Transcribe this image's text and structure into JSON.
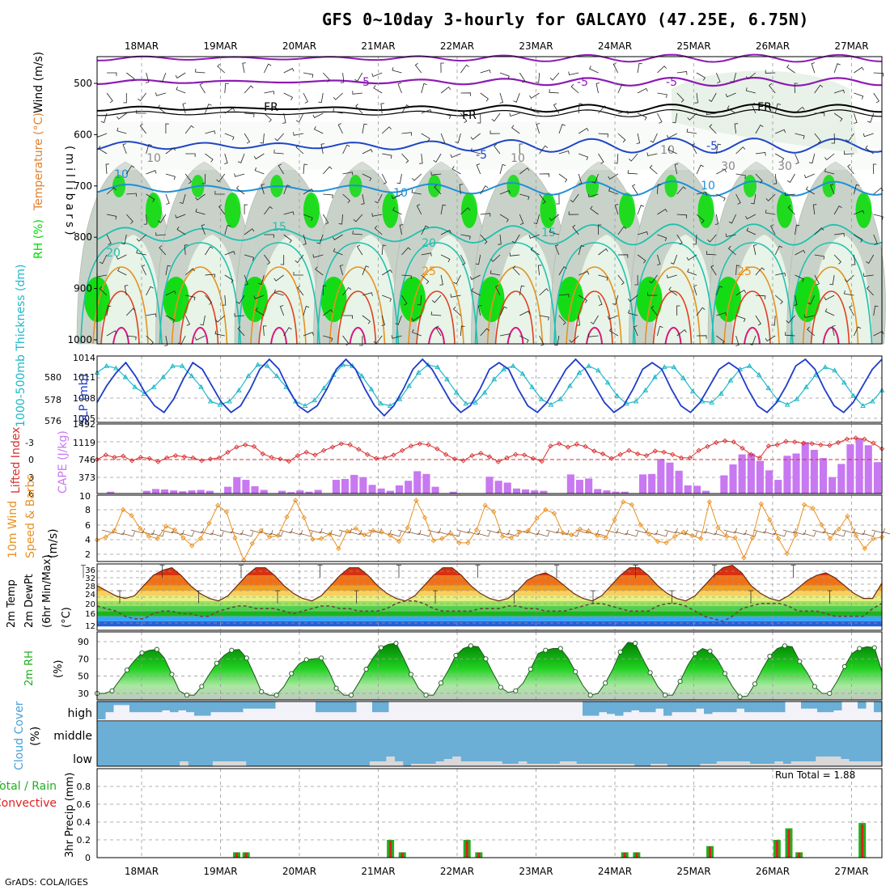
{
  "header": {
    "title": "GFS 0~10day 3-hourly for GALCAYO (47.25E, 6.75N)",
    "footer": "GrADS: COLA/IGES"
  },
  "chart_data": {
    "type": "meteogram",
    "dates": [
      "18MAR",
      "19MAR",
      "20MAR",
      "21MAR",
      "22MAR",
      "23MAR",
      "24MAR",
      "25MAR",
      "26MAR",
      "27MAR"
    ],
    "colors": {
      "rh_green": "#00dd00",
      "rh_light": "#e8f3e8",
      "rh_mid": "#c8d0c8",
      "temp_blue": "#1e46c8",
      "temp_cyan": "#1e90d8",
      "temp_teal": "#20c0b0",
      "temp_orange": "#e89020",
      "temp_red": "#e04020",
      "temp_magenta": "#d81880",
      "fr_line": "#000000",
      "neg5_line": "#8c1ab4",
      "slp": "#1e3cc8",
      "thickness": "#20b8c8",
      "lifted": "#d83030",
      "cape": "#c878f0",
      "wind": "#e89020",
      "cloud": "#6baed6",
      "precip_total": "#20b020",
      "precip_conv": "#e02020"
    },
    "panels": [
      {
        "id": "upper-air",
        "label_parts": [
          "RH (%)",
          "Temperature (°C)",
          "Wind (m/s)"
        ],
        "ylabel": "(millibars)",
        "yticks": [
          "500",
          "600",
          "700",
          "800",
          "900",
          "1000"
        ],
        "contour_labels": [
          "-5",
          "-5",
          "-5",
          "FR",
          "FR",
          "FR",
          "-5",
          "-5",
          "10",
          "10",
          "10",
          "15",
          "15",
          "20",
          "20",
          "25",
          "25",
          "10",
          "10",
          "10",
          "30",
          "30"
        ]
      },
      {
        "id": "slp-thickness",
        "label_left": "1000-500mb Thickness (dm)",
        "label_right": "SLP (mb)",
        "yticks_left": [
          "580",
          "578",
          "576"
        ],
        "yticks_right": [
          "1014",
          "1011",
          "1008",
          "1005"
        ],
        "ylim_right": [
          1004,
          1014
        ],
        "ylim_left": [
          575.7,
          581.7
        ],
        "slp": [
          1007,
          1009.5,
          1011.5,
          1013,
          1011,
          1008.5,
          1006.5,
          1005.5,
          1007.5,
          1010.5,
          1013,
          1012,
          1009.5,
          1007,
          1005.5,
          1006.5,
          1009,
          1012,
          1013.5,
          1012,
          1009,
          1006.5,
          1005.5,
          1006.5,
          1009,
          1012,
          1013.5,
          1012,
          1009,
          1006.5,
          1005,
          1006.5,
          1009,
          1012,
          1013.5,
          1012,
          1009.5,
          1007,
          1005.5,
          1006.5,
          1009,
          1012,
          1013,
          1012,
          1009,
          1006.5,
          1005.5,
          1007,
          1009.5,
          1012,
          1013.5,
          1012,
          1009.5,
          1007,
          1005.5,
          1006.5,
          1009,
          1012,
          1013,
          1012,
          1009,
          1006.5,
          1005.5,
          1007,
          1009.5,
          1012,
          1013,
          1012,
          1009,
          1006.5,
          1005.5,
          1007,
          1009.5,
          1012.5,
          1013.5,
          1012,
          1009,
          1006.5,
          1005.5,
          1007,
          1009.5,
          1012,
          1013.5
        ],
        "thickness": [
          580.2,
          580.8,
          580.6,
          579.8,
          578.9,
          578.3,
          578.9,
          579.8,
          580.8,
          580.8,
          579.9,
          578.9,
          577.6,
          577.3,
          577.6,
          578.6,
          579.9,
          580.9,
          580.8,
          579.9,
          578.9,
          577.6,
          577.2,
          577.7,
          578.8,
          580.0,
          580.9,
          580.8,
          579.9,
          578.7,
          577.4,
          577.2,
          577.8,
          579.0,
          580.2,
          580.9,
          580.7,
          579.6,
          578.4,
          577.4,
          577.5,
          578.4,
          579.6,
          580.5,
          580.8,
          580.1,
          578.9,
          577.8,
          577.3,
          577.8,
          579.0,
          580.2,
          580.8,
          580.4,
          579.3,
          578.1,
          577.4,
          577.6,
          578.6,
          579.8,
          580.7,
          580.7,
          579.7,
          578.5,
          577.6,
          577.5,
          578.3,
          579.5,
          580.5,
          580.8,
          580.0,
          578.8,
          577.7,
          577.3,
          577.8,
          578.9,
          580.0,
          580.7,
          580.4,
          579.3,
          578.1,
          577.2,
          577.6,
          578.6
        ]
      },
      {
        "id": "li-cape",
        "label_left": "Lifted Index",
        "label_right": "CAPE (J/kg)",
        "yticks_left": [
          "-3",
          "0",
          "3",
          "6"
        ],
        "yticks_right": [
          "1492",
          "1119",
          "746",
          "373"
        ],
        "ylim_right": [
          0,
          1492
        ],
        "ylim_left_inverted": [
          -6,
          6
        ],
        "cape": [
          0,
          40,
          0,
          0,
          0,
          60,
          100,
          90,
          70,
          50,
          70,
          80,
          60,
          0,
          150,
          360,
          300,
          160,
          80,
          0,
          60,
          30,
          70,
          40,
          80,
          0,
          300,
          320,
          410,
          360,
          190,
          110,
          60,
          180,
          280,
          490,
          430,
          150,
          0,
          40,
          0,
          0,
          0,
          370,
          280,
          240,
          110,
          90,
          70,
          60,
          0,
          0,
          420,
          300,
          330,
          100,
          70,
          40,
          40,
          0,
          420,
          430,
          760,
          680,
          500,
          180,
          170,
          60,
          0,
          400,
          640,
          860,
          880,
          720,
          510,
          300,
          830,
          880,
          1130,
          960,
          780,
          360,
          650,
          1080,
          1210,
          1060,
          690
        ],
        "lifted": [
          0,
          -0.8,
          -0.4,
          -0.6,
          0.2,
          -0.4,
          -0.2,
          0.4,
          -0.3,
          -0.7,
          -0.5,
          -0.3,
          0.2,
          -0.1,
          -0.3,
          -1.3,
          -2.2,
          -2.6,
          -2.3,
          -1.0,
          -0.4,
          -0.1,
          0.3,
          -0.7,
          -1.3,
          -0.8,
          -1.6,
          -2.2,
          -2.8,
          -2.6,
          -1.8,
          -0.9,
          -0.2,
          -0.3,
          -0.8,
          -1.6,
          -2.4,
          -2.8,
          -2.6,
          -1.9,
          -0.9,
          -0.1,
          0.2,
          -0.7,
          -1.1,
          -0.5,
          0.4,
          -0.3,
          -0.9,
          -0.8,
          -0.2,
          0.3,
          -2.4,
          -2.8,
          -2.2,
          -2.7,
          -2.3,
          -1.5,
          -1.0,
          -0.2,
          -0.9,
          -1.6,
          -1.0,
          -0.7,
          -1.5,
          -1.3,
          -0.9,
          -0.3,
          -0.3,
          -1.6,
          -2.3,
          -3.0,
          -3.3,
          -3.1,
          -2.0,
          -0.9,
          -0.3,
          -2.4,
          -2.6,
          -3.2,
          -3.1,
          -2.9,
          -2.8,
          -2.6,
          -2.5,
          -3.0,
          -3.6,
          -3.8,
          -3.6,
          -2.9,
          -1.9
        ]
      },
      {
        "id": "wind10m",
        "label_left": "10m Wind",
        "label_right": "Speed & Barbs",
        "ylabel": "(m/s)",
        "yticks": [
          "10",
          "8",
          "6",
          "4",
          "2"
        ],
        "ylim": [
          1,
          10
        ],
        "speed": [
          4,
          4.4,
          5.3,
          8.2,
          7.4,
          5.6,
          4.5,
          4.2,
          5.9,
          5.4,
          4.3,
          3.2,
          4.2,
          6.3,
          8.8,
          7.9,
          4.3,
          1.2,
          3.5,
          5.3,
          4.4,
          4.6,
          7.2,
          9.5,
          7.1,
          4.1,
          4.2,
          4.8,
          2.8,
          5.2,
          5.6,
          4.7,
          5.3,
          5.1,
          4.6,
          3.8,
          5.7,
          9.5,
          7.1,
          3.9,
          4.2,
          4.9,
          3.6,
          3.6,
          5.4,
          8.8,
          7.9,
          4.5,
          4.3,
          5.1,
          5.3,
          7.0,
          8.2,
          7.7,
          5.0,
          4.7,
          5.5,
          5.2,
          4.6,
          4.3,
          6.8,
          9.3,
          8.9,
          6.1,
          4.8,
          3.8,
          3.6,
          4.5,
          5.1,
          4.6,
          4.2,
          9.3,
          5.7,
          4.5,
          4.3,
          1.5,
          4.3,
          9.0,
          6.8,
          4.2,
          2.1,
          4.7,
          8.9,
          8.4,
          6.1,
          4.2,
          5.5,
          7.3,
          4.6,
          2.8,
          4.2,
          4.4
        ]
      },
      {
        "id": "temp2m",
        "label_left": "2m Temp",
        "label_mid": "2m DewPt",
        "label_right": "(6hr Min/Max)",
        "ylabel": "(°C)",
        "yticks": [
          "36",
          "32",
          "28",
          "24",
          "20",
          "16",
          "12"
        ],
        "ylim": [
          10.5,
          36.5
        ],
        "temp": [
          28,
          26,
          24,
          23,
          24,
          28,
          32,
          34,
          35,
          32,
          28,
          25,
          23,
          22,
          24,
          28,
          32,
          35,
          35,
          32,
          28,
          25,
          23,
          22,
          24,
          28,
          32,
          35,
          35,
          32,
          28,
          25,
          23,
          22,
          24,
          28,
          32,
          35,
          35,
          32,
          28,
          25,
          23,
          22,
          23,
          26,
          30,
          32,
          33,
          31,
          28,
          25,
          23,
          22,
          24,
          28,
          32,
          35,
          35,
          32,
          28,
          25,
          23,
          22,
          24,
          28,
          32,
          35,
          36,
          33,
          28,
          25,
          23,
          22,
          24,
          27,
          30,
          32,
          33,
          31,
          28,
          25,
          23,
          23,
          29
        ],
        "dewpt": [
          20,
          19,
          18,
          16,
          15,
          15,
          17,
          18,
          18,
          17,
          17,
          16,
          16,
          18,
          19,
          20,
          20,
          19,
          19,
          19,
          18,
          17,
          18,
          19,
          20,
          20,
          19,
          19,
          18,
          18,
          18,
          19,
          21,
          22,
          22,
          21,
          19,
          18,
          18,
          18,
          18,
          19,
          19,
          19,
          20,
          20,
          19,
          19,
          18,
          18,
          18,
          19,
          20,
          21,
          21,
          20,
          19,
          18,
          18,
          18,
          20,
          21,
          21,
          20,
          18,
          16,
          15,
          14,
          16,
          19,
          20,
          21,
          21,
          21,
          20,
          18,
          18,
          18,
          17,
          16,
          16,
          16,
          16,
          19,
          21
        ]
      },
      {
        "id": "rh2m",
        "label_left": "2m RH",
        "ylabel": "(%)",
        "yticks": [
          "90",
          "70",
          "50",
          "30"
        ],
        "ylim": [
          26,
          92
        ],
        "rh": [
          30,
          30,
          33,
          45,
          57,
          68,
          77,
          80,
          81,
          71,
          52,
          33,
          28,
          28,
          38,
          52,
          65,
          74,
          80,
          81,
          71,
          52,
          32,
          28,
          28,
          38,
          53,
          64,
          69,
          70,
          71,
          56,
          36,
          28,
          28,
          42,
          58,
          72,
          83,
          87,
          88,
          71,
          52,
          36,
          28,
          28,
          42,
          57,
          74,
          82,
          85,
          84,
          70,
          53,
          37,
          31,
          33,
          42,
          58,
          76,
          80,
          82,
          82,
          71,
          55,
          39,
          28,
          30,
          42,
          58,
          78,
          89,
          88,
          70,
          54,
          38,
          28,
          28,
          44,
          62,
          76,
          82,
          79,
          69,
          53,
          38,
          26,
          27,
          41,
          58,
          73,
          82,
          85,
          84,
          67,
          54,
          38,
          30,
          30,
          44,
          61,
          76,
          82,
          84,
          83,
          55
        ]
      },
      {
        "id": "cloud",
        "label_left": "Cloud Cover",
        "ylabel": "(%)",
        "levels": [
          "high",
          "middle",
          "low"
        ],
        "cloud_high": [
          100,
          60,
          20,
          20,
          60,
          60,
          60,
          60,
          50,
          60,
          50,
          60,
          80,
          80,
          60,
          60,
          60,
          60,
          40,
          40,
          40,
          40,
          0,
          0,
          0,
          0,
          0,
          60,
          60,
          60,
          60,
          60,
          0,
          0,
          60,
          60,
          0,
          0,
          0,
          0,
          0,
          0,
          0,
          0,
          0,
          0,
          0,
          0,
          0,
          0,
          0,
          0,
          0,
          0,
          0,
          0,
          0,
          0,
          0,
          0,
          80,
          80,
          60,
          70,
          80,
          60,
          50,
          60,
          60,
          40,
          80,
          60,
          60,
          60,
          40,
          70,
          60,
          60,
          60,
          40,
          60,
          60,
          60,
          60,
          60,
          0,
          0,
          40,
          40,
          60,
          60,
          50,
          0,
          0,
          40,
          0,
          60
        ],
        "cloud_low": [
          0,
          0,
          0,
          0,
          0,
          0,
          0,
          0,
          0,
          0,
          20,
          0,
          0,
          0,
          20,
          20,
          20,
          20,
          0,
          0,
          0,
          0,
          0,
          0,
          0,
          0,
          0,
          0,
          0,
          0,
          0,
          0,
          0,
          20,
          20,
          40,
          20,
          0,
          10,
          10,
          10,
          20,
          30,
          40,
          20,
          20,
          20,
          20,
          20,
          10,
          10,
          20,
          10,
          10,
          10,
          10,
          20,
          20,
          10,
          10,
          10,
          10,
          10,
          10,
          10,
          0,
          0,
          10,
          10,
          0,
          0,
          0,
          0,
          10,
          10,
          20,
          20,
          20,
          20,
          10,
          10,
          10,
          20,
          10,
          20,
          20,
          20,
          40,
          40,
          40,
          30,
          20,
          20,
          20,
          20
        ]
      },
      {
        "id": "precip",
        "label_left": "Total / Rain",
        "label_left2": "Convective",
        "ylabel": "3hr Precip (mm)",
        "yticks": [
          "0.8",
          "0.6",
          "0.4",
          "0.2",
          "0"
        ],
        "ylim": [
          0,
          1.0
        ],
        "run_total": "Run Total = 1.88",
        "precip": [
          {
            "day": 1.2,
            "v": 0.06
          },
          {
            "day": 1.32,
            "v": 0.06
          },
          {
            "day": 3.15,
            "v": 0.2
          },
          {
            "day": 3.3,
            "v": 0.06
          },
          {
            "day": 4.12,
            "v": 0.2
          },
          {
            "day": 4.27,
            "v": 0.06
          },
          {
            "day": 6.12,
            "v": 0.06
          },
          {
            "day": 6.27,
            "v": 0.06
          },
          {
            "day": 7.2,
            "v": 0.13
          },
          {
            "day": 8.05,
            "v": 0.2
          },
          {
            "day": 8.2,
            "v": 0.33
          },
          {
            "day": 8.33,
            "v": 0.06
          },
          {
            "day": 9.13,
            "v": 0.39
          }
        ]
      }
    ]
  }
}
